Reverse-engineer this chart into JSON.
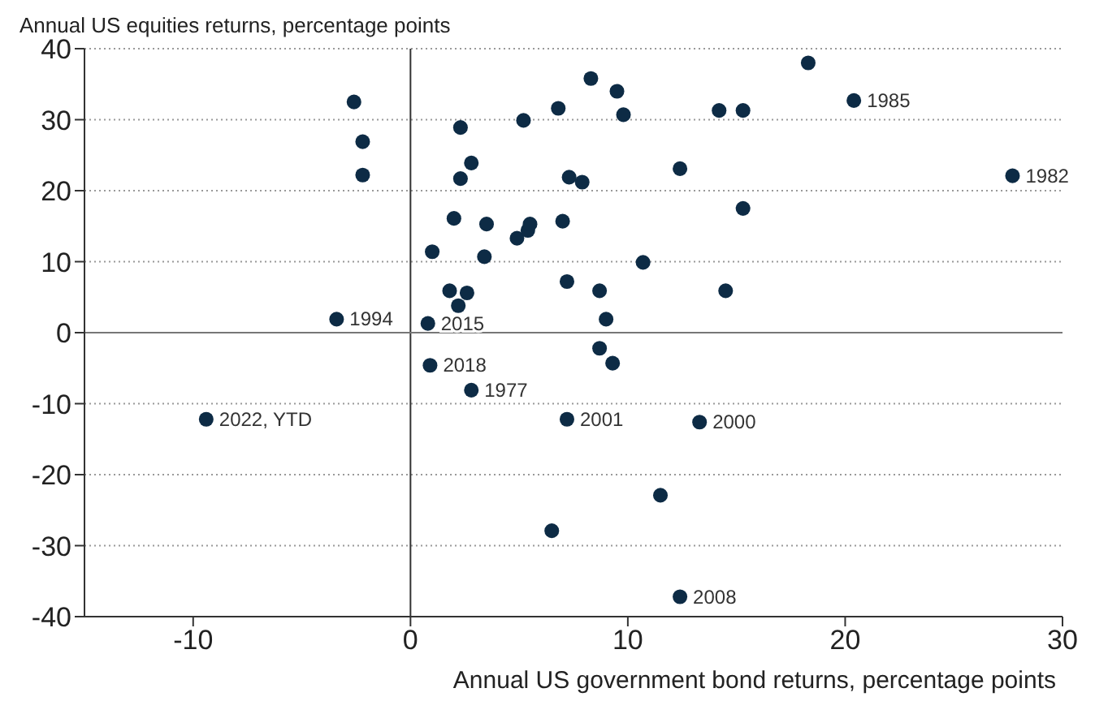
{
  "chart_data": {
    "type": "scatter",
    "title": "Annual US equities returns, percentage points",
    "xlabel": "Annual US government bond returns, percentage points",
    "x": [
      -2.6,
      -2.2,
      -2.2,
      -3.4,
      0.8,
      1.0,
      2.3,
      2.8,
      2.3,
      2.0,
      3.5,
      3.4,
      1.8,
      2.6,
      2.2,
      5.2,
      4.9,
      5.4,
      5.5,
      6.8,
      8.3,
      9.5,
      9.8,
      14.2,
      15.3,
      18.3,
      20.4,
      27.7,
      7.3,
      7.9,
      12.4,
      15.3,
      7.0,
      10.7,
      7.2,
      8.7,
      14.5,
      9.0,
      8.7,
      9.3,
      7.2,
      13.3,
      11.5,
      6.5,
      12.4,
      -9.4,
      0.9,
      2.8
    ],
    "series": [
      {
        "color": "#0d2b45",
        "values": [
          32.5,
          26.9,
          22.2,
          1.9,
          1.3,
          11.4,
          28.9,
          23.9,
          21.7,
          16.1,
          15.3,
          10.7,
          5.9,
          5.6,
          3.8,
          29.9,
          13.3,
          14.4,
          15.3,
          31.6,
          35.8,
          34.0,
          30.7,
          31.3,
          31.3,
          38.0,
          32.7,
          22.1,
          21.9,
          21.2,
          23.1,
          17.5,
          15.7,
          9.9,
          7.2,
          5.9,
          5.9,
          1.9,
          -2.2,
          -4.3,
          -12.2,
          -12.6,
          -22.9,
          -27.9,
          -37.2,
          -12.2,
          -4.6,
          -8.1
        ]
      }
    ],
    "xlim": [
      -15,
      30
    ],
    "xticks": [
      -10,
      0,
      10,
      20,
      30
    ],
    "ylim": [
      -40,
      40
    ],
    "yticks": [
      -40,
      -30,
      -20,
      -10,
      0,
      10,
      20,
      30,
      40
    ],
    "grid": "y",
    "marker": "circle",
    "ref_lines": [
      {
        "axis": "x",
        "value": 0,
        "color": "#333333"
      },
      {
        "axis": "y",
        "value": 0,
        "color": "#777777"
      }
    ],
    "annotations": [
      {
        "text": "1994",
        "x": -3.4,
        "y": 1.9
      },
      {
        "text": "2015",
        "x": 0.8,
        "y": 1.3
      },
      {
        "text": "1985",
        "x": 20.4,
        "y": 32.7
      },
      {
        "text": "1982",
        "x": 27.7,
        "y": 22.1
      },
      {
        "text": "2018",
        "x": 0.9,
        "y": -4.6
      },
      {
        "text": "1977",
        "x": 2.8,
        "y": -8.1
      },
      {
        "text": "2001",
        "x": 7.2,
        "y": -12.2
      },
      {
        "text": "2000",
        "x": 13.3,
        "y": -12.6
      },
      {
        "text": "2008",
        "x": 12.4,
        "y": -37.2
      },
      {
        "text": "2022, YTD",
        "x": -9.4,
        "y": -12.2
      }
    ]
  }
}
